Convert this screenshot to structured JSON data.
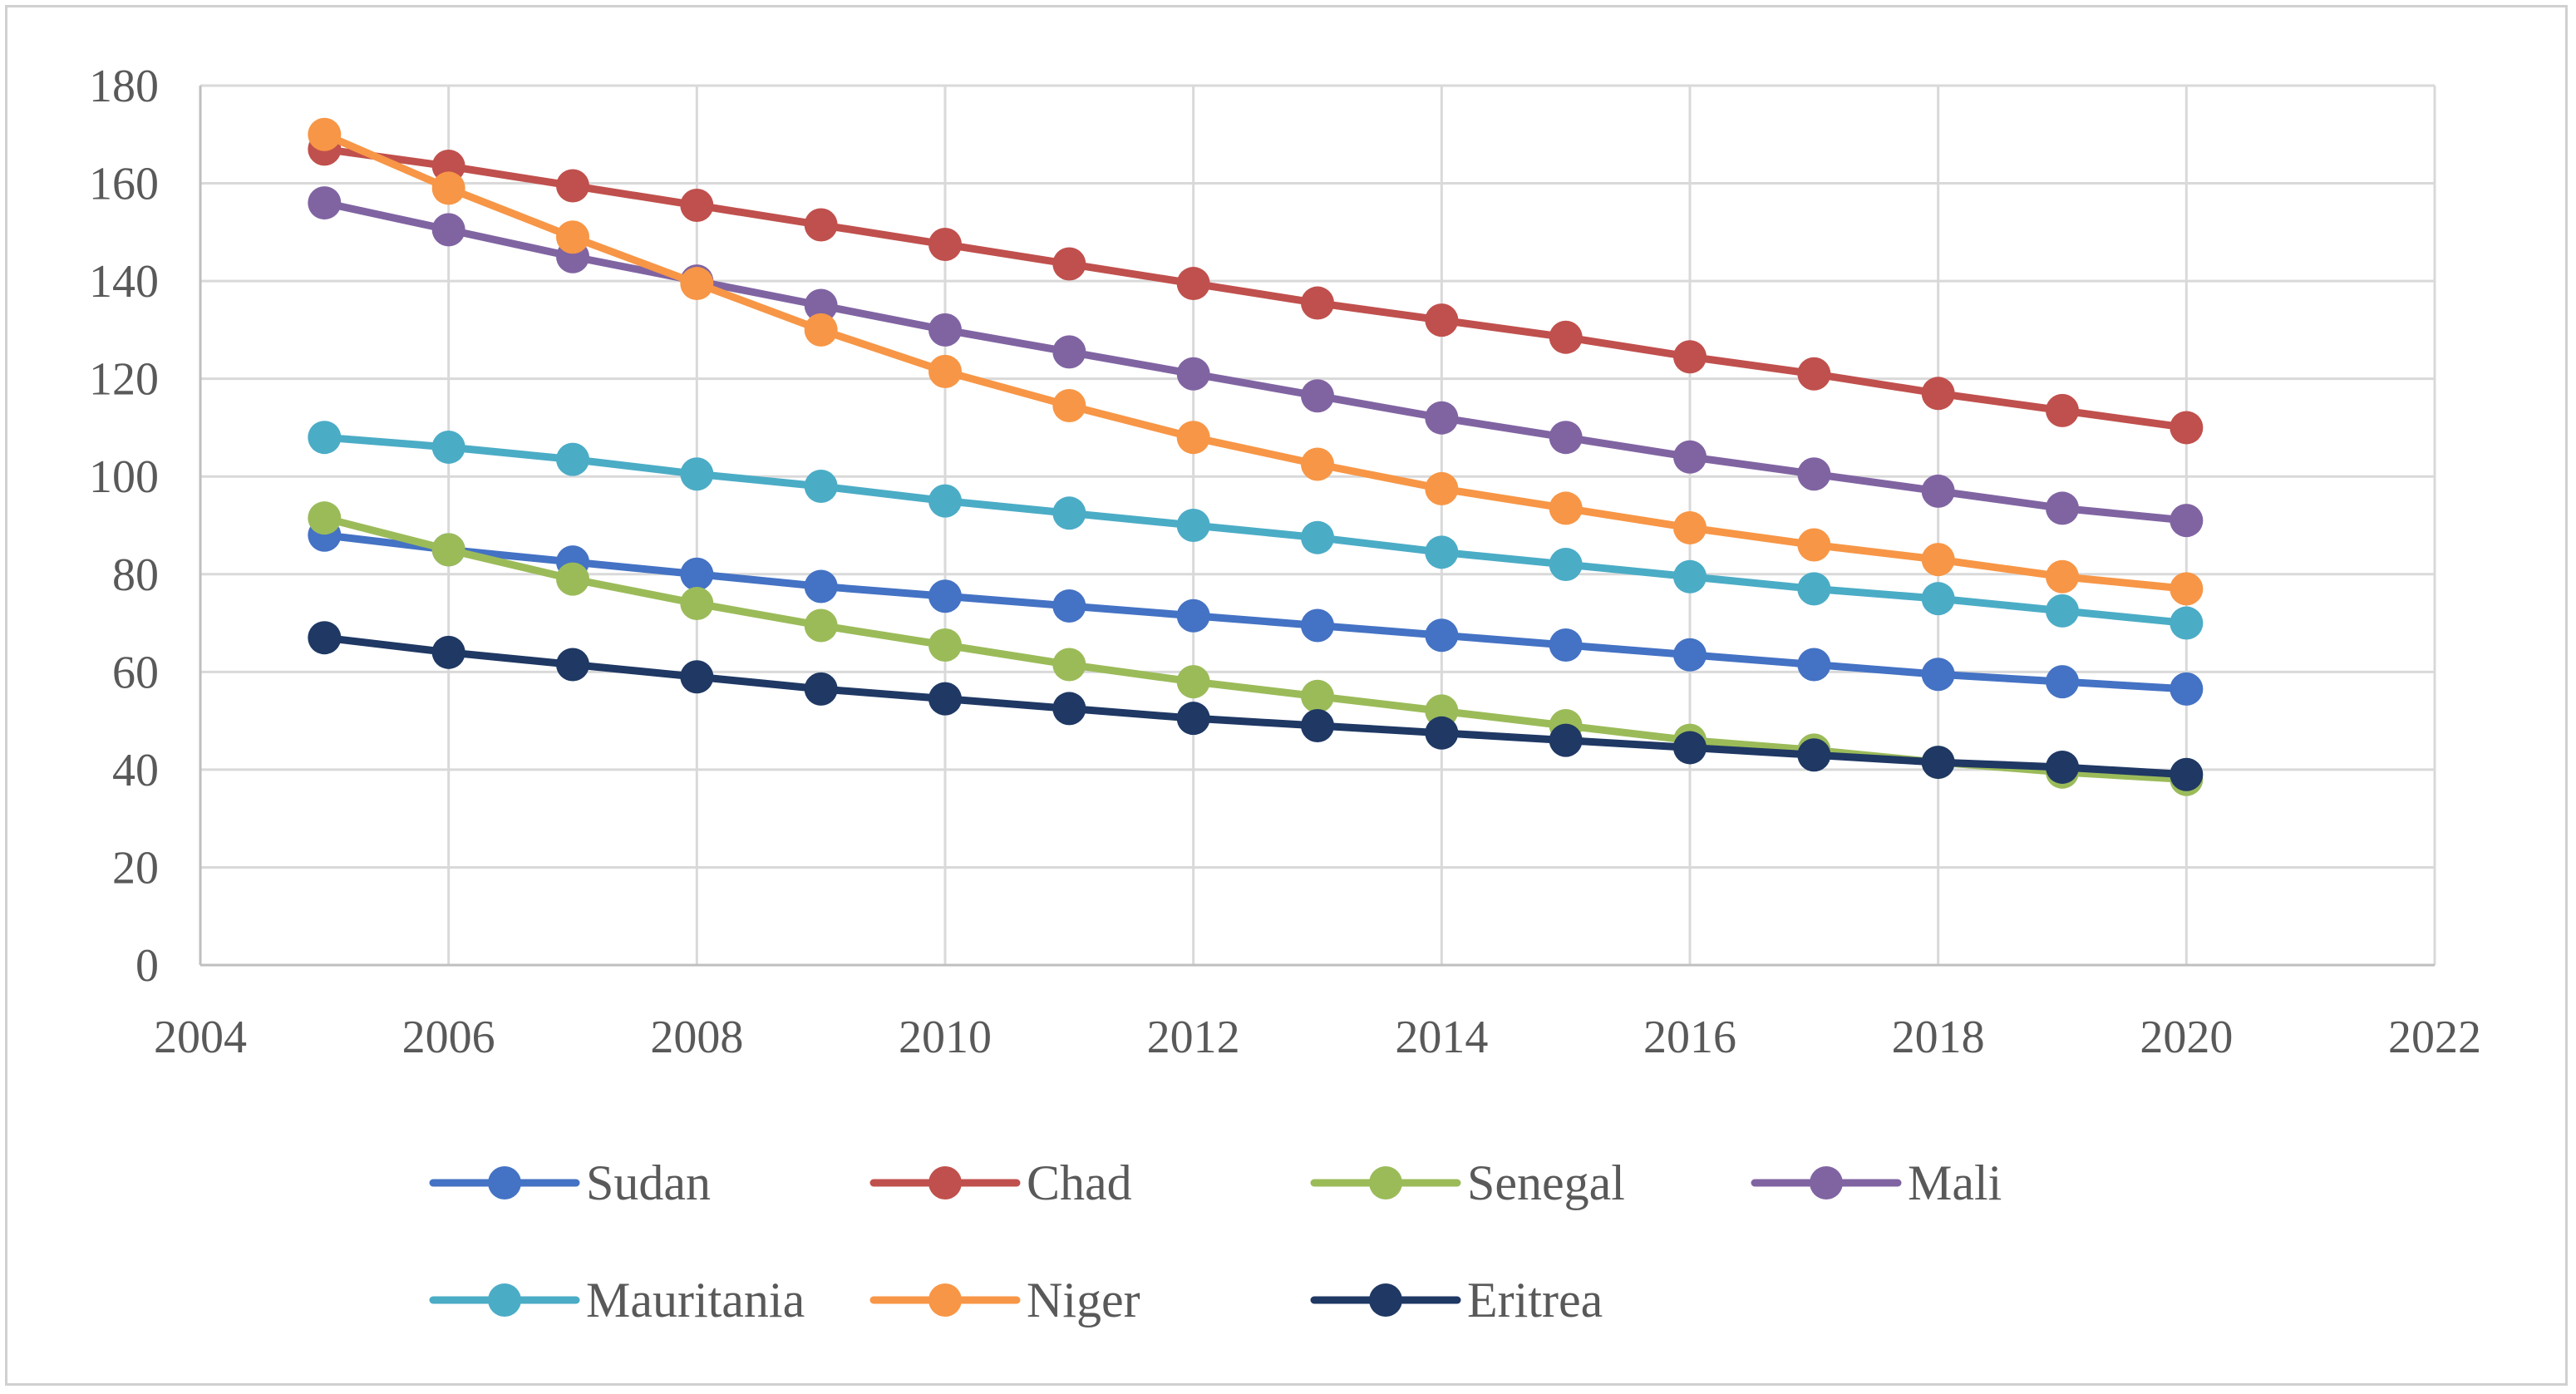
{
  "chart_data": {
    "type": "line",
    "title": "",
    "xlabel": "",
    "ylabel": "",
    "xlim": [
      2004,
      2022
    ],
    "ylim": [
      0,
      180
    ],
    "x_ticks": [
      2004,
      2006,
      2008,
      2010,
      2012,
      2014,
      2016,
      2018,
      2020,
      2022
    ],
    "y_ticks": [
      0,
      20,
      40,
      60,
      80,
      100,
      120,
      140,
      160,
      180
    ],
    "grid": true,
    "legend_position": "bottom",
    "x": [
      2005,
      2006,
      2007,
      2008,
      2009,
      2010,
      2011,
      2012,
      2013,
      2014,
      2015,
      2016,
      2017,
      2018,
      2019,
      2020
    ],
    "series": [
      {
        "name": "Sudan",
        "color": "#4472C4",
        "values": [
          88,
          85,
          82.5,
          80,
          77.5,
          75.5,
          73.5,
          71.5,
          69.5,
          67.5,
          65.5,
          63.5,
          61.5,
          59.5,
          58,
          56.5
        ]
      },
      {
        "name": "Chad",
        "color": "#C0504D",
        "values": [
          167,
          163.5,
          159.5,
          155.5,
          151.5,
          147.5,
          143.5,
          139.5,
          135.5,
          132,
          128.5,
          124.5,
          121,
          117,
          113.5,
          110
        ]
      },
      {
        "name": "Senegal",
        "color": "#9BBB59",
        "values": [
          91.5,
          85,
          79,
          74,
          69.5,
          65.5,
          61.5,
          58,
          55,
          52,
          49,
          46,
          44,
          41.5,
          39.5,
          38
        ]
      },
      {
        "name": "Mali",
        "color": "#8064A2",
        "values": [
          156,
          150.5,
          145,
          140,
          135,
          130,
          125.5,
          121,
          116.5,
          112,
          108,
          104,
          100.5,
          97,
          93.5,
          91
        ]
      },
      {
        "name": "Mauritania",
        "color": "#4BACC6",
        "values": [
          108,
          106,
          103.5,
          100.5,
          98,
          95,
          92.5,
          90,
          87.5,
          84.5,
          82,
          79.5,
          77,
          75,
          72.5,
          70
        ]
      },
      {
        "name": "Niger",
        "color": "#F79646",
        "values": [
          170,
          159,
          149,
          139.5,
          130,
          121.5,
          114.5,
          108,
          102.5,
          97.5,
          93.5,
          89.5,
          86,
          83,
          79.5,
          77
        ]
      },
      {
        "name": "Eritrea",
        "color": "#1F3864",
        "values": [
          67,
          64,
          61.5,
          59,
          56.5,
          54.5,
          52.5,
          50.5,
          49,
          47.5,
          46,
          44.5,
          43,
          41.5,
          40.5,
          39
        ]
      }
    ]
  }
}
